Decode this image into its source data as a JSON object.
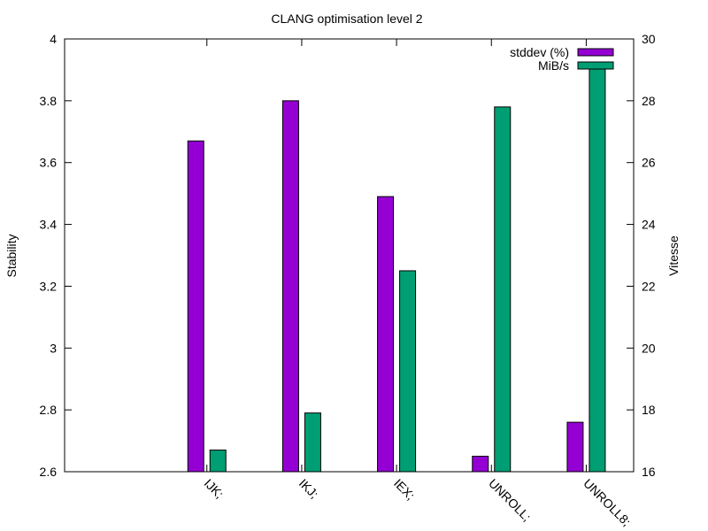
{
  "chart_data": {
    "type": "bar",
    "title": "CLANG optimisation level 2",
    "categories": [
      "IJK;",
      "IKJ;",
      "IEX;",
      "UNROLL;",
      "UNROLL8;"
    ],
    "xlim": [
      -1.5,
      4.5
    ],
    "y_left": {
      "label": "Stability",
      "lim": [
        2.6,
        4.0
      ],
      "ticks": [
        2.6,
        2.8,
        3.0,
        3.2,
        3.4,
        3.6,
        3.8,
        4.0
      ],
      "tick_labels": [
        "2.6",
        "2.8",
        "3",
        "3.2",
        "3.4",
        "3.6",
        "3.8",
        "4"
      ]
    },
    "y_right": {
      "label": "Vitesse",
      "lim": [
        16,
        30
      ],
      "ticks": [
        16,
        18,
        20,
        22,
        24,
        26,
        28,
        30
      ],
      "tick_labels": [
        "16",
        "18",
        "20",
        "22",
        "24",
        "26",
        "28",
        "30"
      ]
    },
    "series": [
      {
        "name": "stddev (%)",
        "axis": "left",
        "color": "#9400d3",
        "values": [
          3.67,
          3.8,
          3.49,
          2.65,
          2.76
        ]
      },
      {
        "name": "MiB/s",
        "axis": "right",
        "color": "#009e73",
        "values": [
          16.7,
          17.9,
          22.5,
          27.8,
          29.1
        ]
      }
    ],
    "legend": "top-right",
    "grid": false
  }
}
